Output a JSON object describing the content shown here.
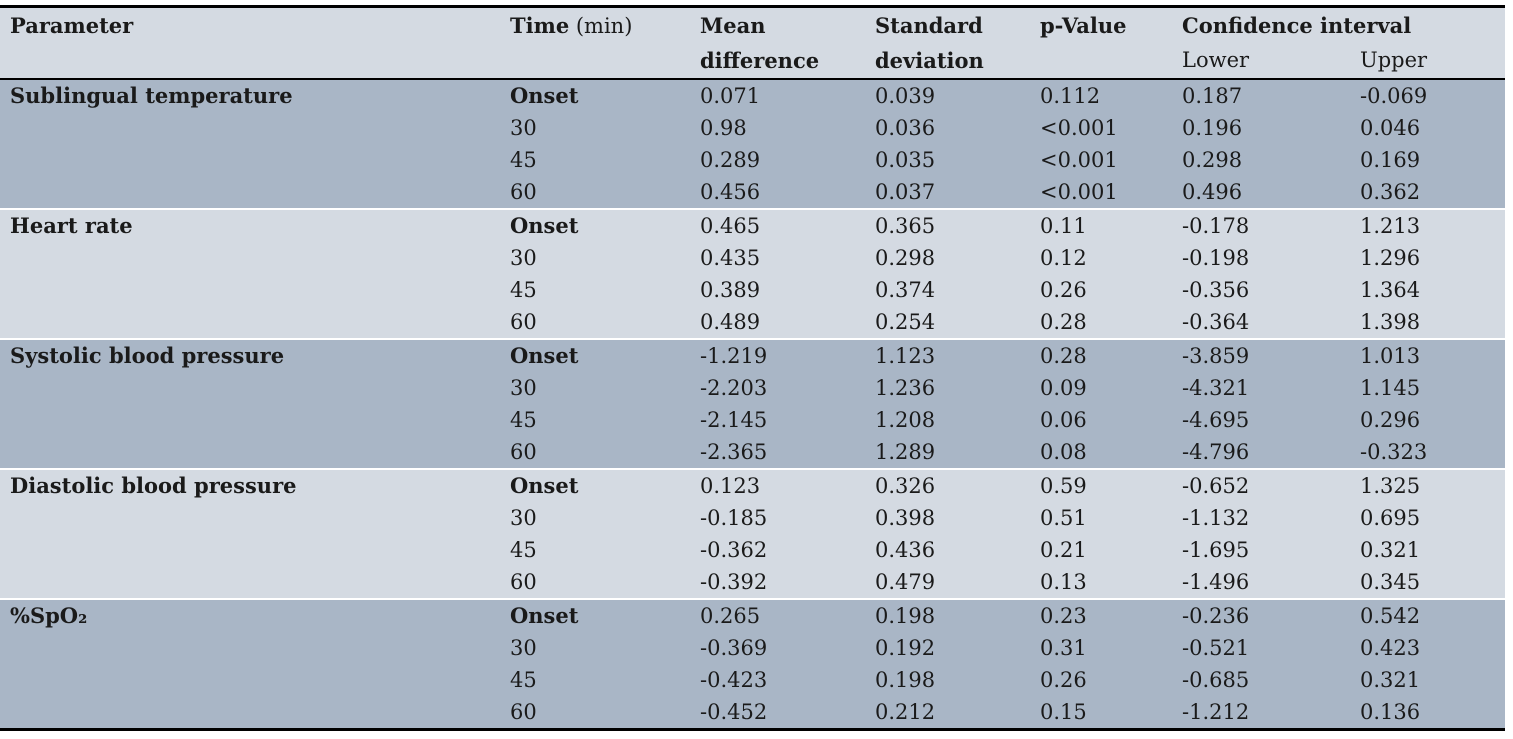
{
  "colors": {
    "band_dark": "#a9b6c6",
    "band_light": "#d4dae2",
    "header_bg": "#d4dae2",
    "border_black": "#000000",
    "separator_white": "#ffffff",
    "text": "#1a1a1a"
  },
  "table": {
    "header": {
      "parameter": "Parameter",
      "time_bold": "Time",
      "time_unit": " (min)",
      "mean_line1": "Mean",
      "mean_line2": "difference",
      "sd_line1": "Standard",
      "sd_line2": "deviation",
      "p_value": "p-Value",
      "ci": "Confidence interval",
      "ci_lower": "Lower",
      "ci_upper": "Upper"
    },
    "groups": [
      {
        "parameter": "Sublingual temperature",
        "rows": [
          {
            "time": "Onset",
            "mean": "0.071",
            "sd": "0.039",
            "p": "0.112",
            "lower": "0.187",
            "upper": "-0.069"
          },
          {
            "time": "30",
            "mean": "0.98",
            "sd": "0.036",
            "p": "<0.001",
            "lower": "0.196",
            "upper": "0.046"
          },
          {
            "time": "45",
            "mean": "0.289",
            "sd": "0.035",
            "p": "<0.001",
            "lower": "0.298",
            "upper": "0.169"
          },
          {
            "time": "60",
            "mean": "0.456",
            "sd": "0.037",
            "p": "<0.001",
            "lower": "0.496",
            "upper": "0.362"
          }
        ]
      },
      {
        "parameter": "Heart rate",
        "rows": [
          {
            "time": "Onset",
            "mean": "0.465",
            "sd": "0.365",
            "p": "0.11",
            "lower": "-0.178",
            "upper": "1.213"
          },
          {
            "time": "30",
            "mean": "0.435",
            "sd": "0.298",
            "p": "0.12",
            "lower": "-0.198",
            "upper": "1.296"
          },
          {
            "time": "45",
            "mean": "0.389",
            "sd": "0.374",
            "p": "0.26",
            "lower": "-0.356",
            "upper": "1.364"
          },
          {
            "time": "60",
            "mean": "0.489",
            "sd": "0.254",
            "p": "0.28",
            "lower": "-0.364",
            "upper": "1.398"
          }
        ]
      },
      {
        "parameter": "Systolic blood pressure",
        "rows": [
          {
            "time": "Onset",
            "mean": "-1.219",
            "sd": "1.123",
            "p": "0.28",
            "lower": "-3.859",
            "upper": "1.013"
          },
          {
            "time": "30",
            "mean": "-2.203",
            "sd": "1.236",
            "p": "0.09",
            "lower": "-4.321",
            "upper": "1.145"
          },
          {
            "time": "45",
            "mean": "-2.145",
            "sd": "1.208",
            "p": "0.06",
            "lower": "-4.695",
            "upper": "0.296"
          },
          {
            "time": "60",
            "mean": "-2.365",
            "sd": "1.289",
            "p": "0.08",
            "lower": "-4.796",
            "upper": "-0.323"
          }
        ]
      },
      {
        "parameter": "Diastolic blood pressure",
        "rows": [
          {
            "time": "Onset",
            "mean": "0.123",
            "sd": "0.326",
            "p": "0.59",
            "lower": "-0.652",
            "upper": "1.325"
          },
          {
            "time": "30",
            "mean": "-0.185",
            "sd": "0.398",
            "p": "0.51",
            "lower": "-1.132",
            "upper": "0.695"
          },
          {
            "time": "45",
            "mean": "-0.362",
            "sd": "0.436",
            "p": "0.21",
            "lower": "-1.695",
            "upper": "0.321"
          },
          {
            "time": "60",
            "mean": "-0.392",
            "sd": "0.479",
            "p": "0.13",
            "lower": "-1.496",
            "upper": "0.345"
          }
        ]
      },
      {
        "parameter": "%SpO₂",
        "rows": [
          {
            "time": "Onset",
            "mean": "0.265",
            "sd": "0.198",
            "p": "0.23",
            "lower": "-0.236",
            "upper": "0.542"
          },
          {
            "time": "30",
            "mean": "-0.369",
            "sd": "0.192",
            "p": "0.31",
            "lower": "-0.521",
            "upper": "0.423"
          },
          {
            "time": "45",
            "mean": "-0.423",
            "sd": "0.198",
            "p": "0.26",
            "lower": "-0.685",
            "upper": "0.321"
          },
          {
            "time": "60",
            "mean": "-0.452",
            "sd": "0.212",
            "p": "0.15",
            "lower": "-1.212",
            "upper": "0.136"
          }
        ]
      }
    ]
  }
}
